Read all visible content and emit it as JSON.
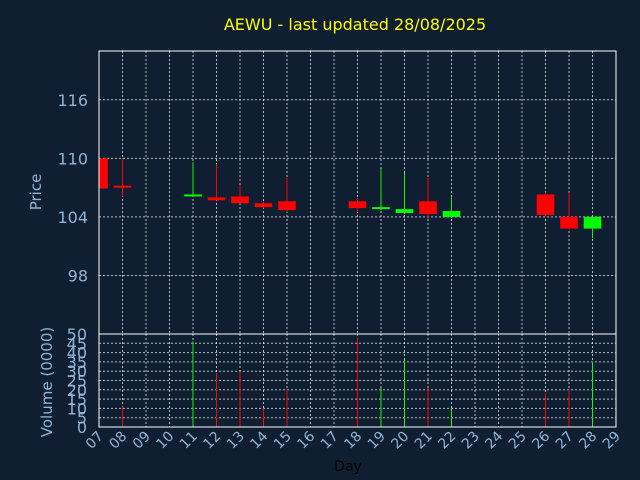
{
  "colors": {
    "background": "#0f1e30",
    "frame": "#ffffff",
    "grid": "#ffffff",
    "title": "#ffff00",
    "axis_text": "#8fb4d6",
    "xlabel_text": "#000000",
    "down": "#ff0000",
    "up": "#00ff00"
  },
  "chart_data": [
    {
      "type": "candlestick",
      "title": "AEWU - last updated 28/08/2025",
      "ylabel": "Price",
      "ylim": [
        92,
        121
      ],
      "yticks": [
        98,
        104,
        110,
        116
      ],
      "grid": true,
      "x": [
        "07",
        "08",
        "11",
        "12",
        "13",
        "14",
        "15",
        "18",
        "19",
        "20",
        "21",
        "22",
        "26",
        "27",
        "28"
      ],
      "open": [
        110.0,
        107.2,
        106.1,
        106.0,
        106.1,
        105.4,
        105.6,
        105.6,
        104.9,
        104.4,
        105.6,
        104.0,
        106.3,
        104.0,
        102.8
      ],
      "high": [
        110.5,
        110.0,
        109.6,
        109.4,
        107.3,
        105.6,
        108.0,
        105.9,
        108.9,
        108.5,
        108.0,
        106.0,
        106.5,
        106.5,
        104.0
      ],
      "low": [
        106.4,
        106.1,
        106.1,
        105.9,
        105.4,
        104.9,
        104.5,
        104.5,
        104.7,
        104.3,
        103.8,
        103.9,
        104.0,
        102.7,
        101.8
      ],
      "close": [
        106.9,
        107.0,
        106.3,
        105.7,
        105.4,
        105.0,
        104.7,
        104.9,
        105.0,
        104.8,
        104.3,
        104.6,
        104.2,
        102.8,
        104.0
      ]
    },
    {
      "type": "bar",
      "ylabel": "Volume (0000)",
      "xlabel": "Day",
      "ylim": [
        0,
        50
      ],
      "yticks": [
        0,
        5,
        10,
        15,
        20,
        25,
        30,
        35,
        40,
        45,
        50
      ],
      "grid": true,
      "x": [
        "07",
        "08",
        "11",
        "12",
        "13",
        "14",
        "15",
        "18",
        "19",
        "20",
        "21",
        "22",
        "26",
        "27",
        "28"
      ],
      "values": [
        0,
        11,
        46,
        29,
        30,
        10,
        20,
        48,
        21,
        36,
        21,
        10,
        18,
        20,
        35
      ]
    }
  ],
  "xaxis": {
    "tick_labels": [
      "07",
      "08",
      "09",
      "10",
      "11",
      "12",
      "13",
      "14",
      "15",
      "16",
      "17",
      "18",
      "19",
      "20",
      "21",
      "22",
      "23",
      "24",
      "25",
      "26",
      "27",
      "28",
      "29"
    ]
  }
}
